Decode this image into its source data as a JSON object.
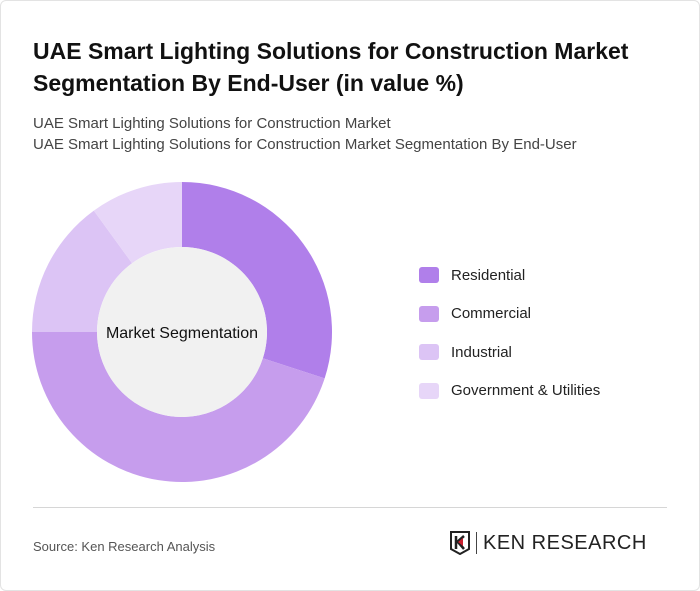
{
  "title": "UAE Smart Lighting Solutions for Construction Market Segmentation By End-User (in value %)",
  "subtitle_1": "UAE Smart Lighting Solutions for Construction Market",
  "subtitle_2": "UAE Smart Lighting Solutions for Construction Market Segmentation By End-User",
  "source": "Source: Ken Research Analysis",
  "logo_text": "KEN RESEARCH",
  "chart_data": {
    "type": "pie",
    "donut": true,
    "center_label": "Market Segmentation",
    "categories": [
      "Residential",
      "Commercial",
      "Industrial",
      "Government & Utilities"
    ],
    "values": [
      30,
      45,
      15,
      10
    ],
    "colors": [
      "#b07fea",
      "#c69ded",
      "#dcc4f5",
      "#e7d6f8"
    ],
    "legend_position": "right"
  }
}
